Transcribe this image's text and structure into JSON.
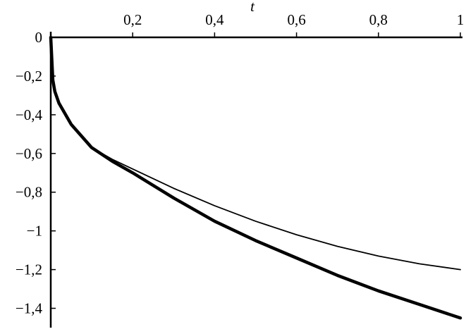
{
  "chart_data": {
    "type": "line",
    "x_label": "t",
    "x": [
      0,
      0.005,
      0.01,
      0.02,
      0.05,
      0.1,
      0.15,
      0.2,
      0.3,
      0.4,
      0.5,
      0.6,
      0.7,
      0.8,
      0.9,
      1
    ],
    "series": [
      {
        "color": "#000000",
        "values": [
          0,
          -0.22,
          -0.28,
          -0.34,
          -0.45,
          -0.57,
          -0.63,
          -0.68,
          -0.78,
          -0.87,
          -0.95,
          -1.02,
          -1.08,
          -1.13,
          -1.17,
          -1.2
        ]
      },
      {
        "color": "#000000",
        "values": [
          0,
          -0.22,
          -0.28,
          -0.34,
          -0.45,
          -0.57,
          -0.64,
          -0.7,
          -0.83,
          -0.95,
          -1.05,
          -1.14,
          -1.23,
          -1.31,
          -1.38,
          -1.45
        ]
      }
    ],
    "xlim": [
      0,
      1
    ],
    "xticks": [
      {
        "value": 0.2,
        "label": "0,2"
      },
      {
        "value": 0.4,
        "label": "0,4"
      },
      {
        "value": 0.6,
        "label": "0,6"
      },
      {
        "value": 0.8,
        "label": "0,8"
      },
      1
    ],
    "ylim": [
      -1.5,
      0
    ],
    "yticks": [
      0,
      {
        "value": -0.2,
        "label": "−0,2"
      },
      {
        "value": -0.4,
        "label": "−0,4"
      },
      {
        "value": -0.6,
        "label": "−0,6"
      },
      {
        "value": -0.8,
        "label": "−0,8"
      },
      {
        "value": -1,
        "label": "−1"
      },
      {
        "value": -1.2,
        "label": "−1,2"
      },
      {
        "value": -1.4,
        "label": "−1,4"
      }
    ]
  }
}
